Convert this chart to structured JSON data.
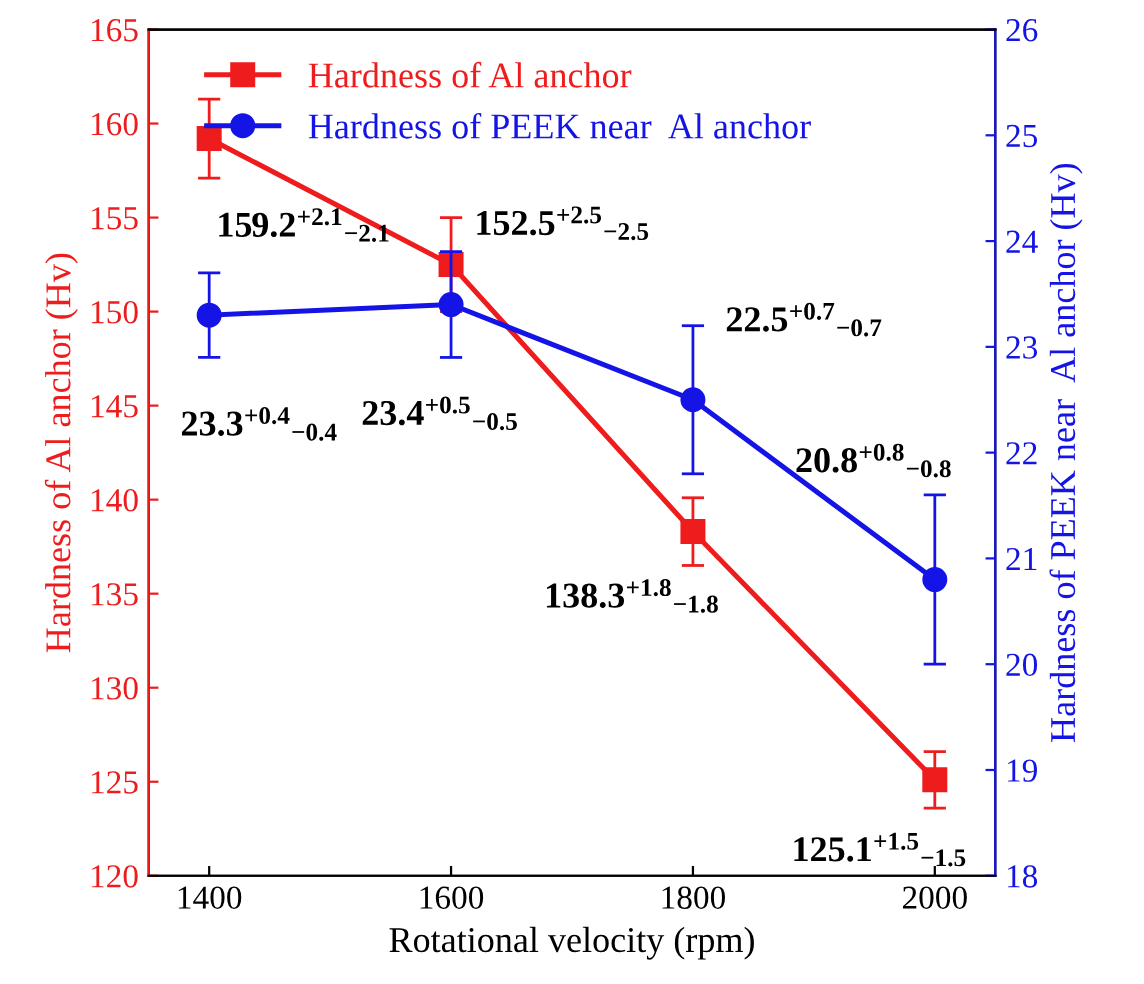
{
  "chart_data": {
    "type": "line",
    "xlabel": "Rotational velocity (rpm)",
    "ylabel": "Hardness of Al anchor (Hv)",
    "y2label": "Hardness of PEEK near  Al anchor (Hv)",
    "x": [
      1400,
      1600,
      1800,
      2000
    ],
    "xlim": [
      1350,
      2050
    ],
    "xticks": [
      1400,
      1600,
      1800,
      2000
    ],
    "ylim": [
      120,
      165
    ],
    "yticks": [
      120,
      125,
      130,
      135,
      140,
      145,
      150,
      155,
      160,
      165
    ],
    "y2lim": [
      18,
      26
    ],
    "y2ticks": [
      18,
      19,
      20,
      21,
      22,
      23,
      24,
      25,
      26
    ],
    "legend": "top left",
    "grid": false,
    "series": [
      {
        "name": "Hardness of Al anchor",
        "color": "#ee1c1c",
        "marker": "square",
        "values": [
          159.2,
          152.5,
          138.3,
          125.1
        ],
        "errors": [
          2.1,
          2.5,
          1.8,
          1.5
        ],
        "value_labels": [
          "159.2$^{+2.1}$$_{−2.1}$",
          "152.5$^{+2.5}$$_{−2.5}$",
          "138.3$^{+1.8}$$_{−1.8}$",
          "125.1$^{+1.5}$$_{−1.5}$"
        ]
      },
      {
        "name": "Hardness of PEEK near  Al anchor",
        "color": "#1414e6",
        "marker": "circle",
        "axis": "y2",
        "values": [
          23.3,
          23.4,
          22.5,
          20.8
        ],
        "errors": [
          0.4,
          0.5,
          0.7,
          0.8
        ],
        "value_labels": [
          "23.3$^{+0.4}$$_{−0.4}$",
          "23.4$^{+0.5}$$_{−0.5}$",
          "22.5$^{+0.7}$$_{−0.7}$",
          "20.8$^{+0.8}$$_{−0.8}$"
        ]
      }
    ]
  }
}
